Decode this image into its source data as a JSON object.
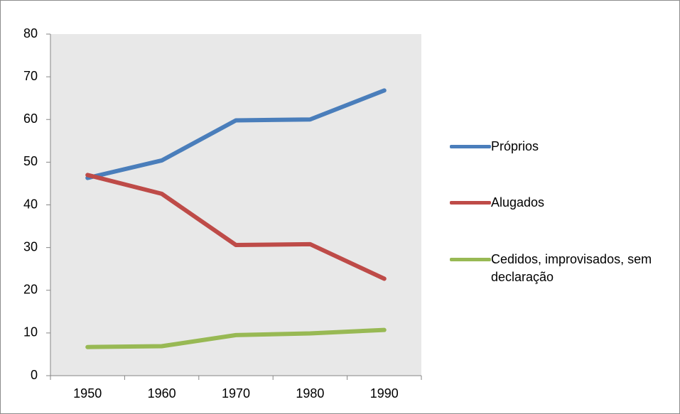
{
  "chart_data": {
    "type": "line",
    "categories": [
      "1950",
      "1960",
      "1970",
      "1980",
      "1990"
    ],
    "series": [
      {
        "name": "Próprios",
        "color": "#4a7ebb",
        "values": [
          46.3,
          50.4,
          59.8,
          60.0,
          66.8
        ]
      },
      {
        "name": "Alugados",
        "color": "#be4b48",
        "values": [
          47.0,
          42.6,
          30.6,
          30.8,
          22.7
        ]
      },
      {
        "name": "Cedidos, improvisados, sem declaração",
        "color": "#98b954",
        "values": [
          6.7,
          6.9,
          9.5,
          9.9,
          10.7
        ]
      }
    ],
    "ylim": [
      0,
      80
    ],
    "yticks": [
      0,
      10,
      20,
      30,
      40,
      50,
      60,
      70,
      80
    ],
    "legend": "right"
  }
}
